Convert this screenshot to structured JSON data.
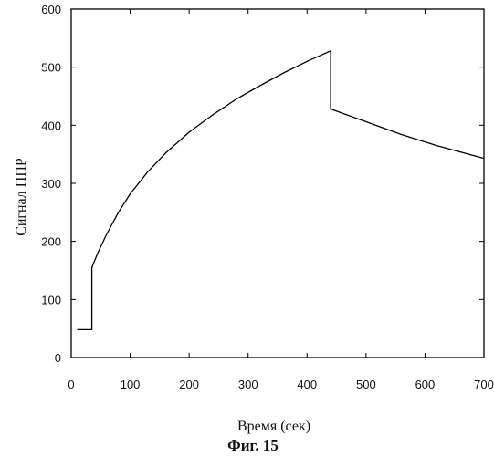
{
  "chart_data": {
    "type": "line",
    "title": "",
    "xlabel": "Время (сек)",
    "ylabel": "Сигнал ППР",
    "caption": "Фиг. 15",
    "xlim": [
      0,
      700
    ],
    "ylim": [
      0,
      600
    ],
    "xticks": [
      0,
      100,
      200,
      300,
      400,
      500,
      600,
      700
    ],
    "yticks": [
      0,
      100,
      200,
      300,
      400,
      500,
      600
    ],
    "grid": false,
    "line_color": "#000000",
    "series": [
      {
        "x": [
          10,
          35,
          35,
          45,
          60,
          80,
          100,
          130,
          160,
          200,
          240,
          280,
          320,
          360,
          400,
          440,
          440,
          500,
          560,
          620,
          700
        ],
        "values": [
          48,
          48,
          155,
          180,
          212,
          250,
          282,
          320,
          352,
          388,
          418,
          445,
          468,
          490,
          510,
          528,
          428,
          406,
          384,
          365,
          343
        ]
      }
    ]
  }
}
